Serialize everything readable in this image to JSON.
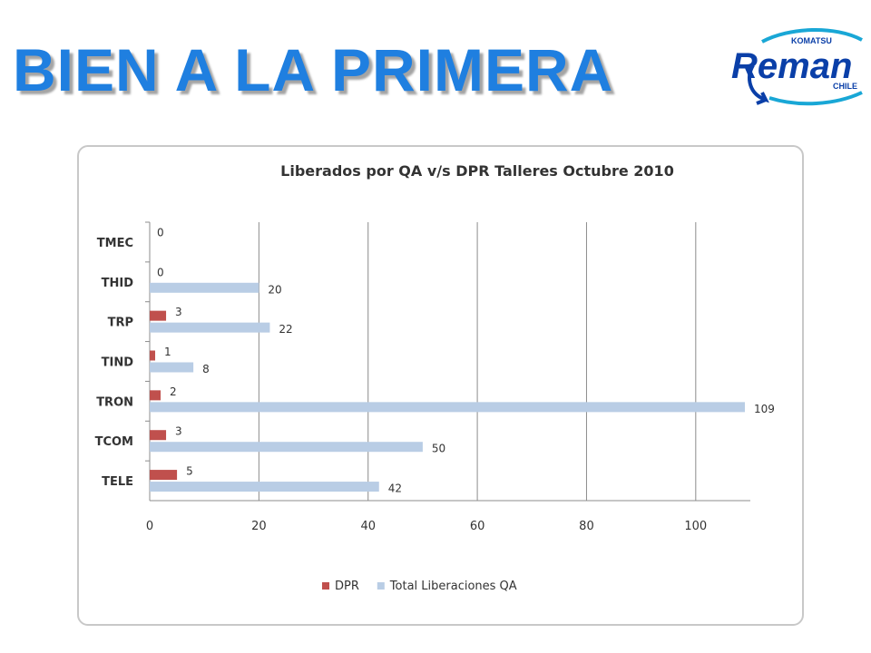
{
  "slide": {
    "title": "BIEN A LA PRIMERA"
  },
  "logo": {
    "top_text": "KOMATSU",
    "main_text": "Reman",
    "sub_text": "CHILE",
    "colors": {
      "blue": "#0a3fa8",
      "cyan": "#19a7d6"
    }
  },
  "chart_data": {
    "type": "bar",
    "orientation": "horizontal",
    "title": "Liberados por QA v/s DPR Talleres Octubre 2010",
    "categories": [
      "TMEC",
      "THID",
      "TRP",
      "TIND",
      "TRON",
      "TCOM",
      "TELE"
    ],
    "series": [
      {
        "name": "DPR",
        "color": "#c0504d",
        "values": [
          0,
          0,
          3,
          1,
          2,
          3,
          5
        ]
      },
      {
        "name": "Total Liberaciones QA",
        "color": "#b9cde5",
        "values": [
          null,
          20,
          22,
          8,
          109,
          50,
          42
        ]
      }
    ],
    "xlim": [
      0,
      110
    ],
    "xticks": [
      0,
      20,
      40,
      60,
      80,
      100
    ],
    "grid": "vertical",
    "legend": "bottom"
  }
}
